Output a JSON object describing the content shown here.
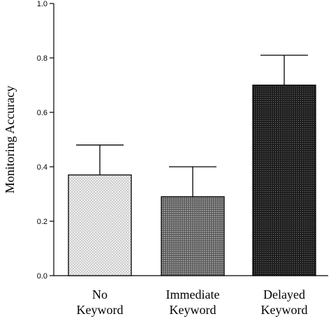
{
  "chart_data": {
    "type": "bar",
    "categories": [
      [
        "No",
        "Keyword"
      ],
      [
        "Immediate",
        "Keyword"
      ],
      [
        "Delayed",
        "Keyword"
      ]
    ],
    "values": [
      0.37,
      0.29,
      0.7
    ],
    "error_upper": [
      0.48,
      0.4,
      0.81
    ],
    "ylabel": "Monitoring Accuracy",
    "xlabel": "",
    "title": "",
    "ylim": [
      0.0,
      1.0
    ],
    "yticks": [
      0.0,
      0.2,
      0.4,
      0.6,
      0.8,
      1.0
    ],
    "ytick_labels": [
      "0.0",
      "0.2",
      "0.4",
      "0.6",
      "0.8",
      "1.0"
    ],
    "grid": false,
    "bar_fills": [
      "light-stipple",
      "medium-stipple",
      "dark-stipple"
    ],
    "bar_colors": [
      "#e6e6e6",
      "#707070",
      "#262626"
    ]
  }
}
